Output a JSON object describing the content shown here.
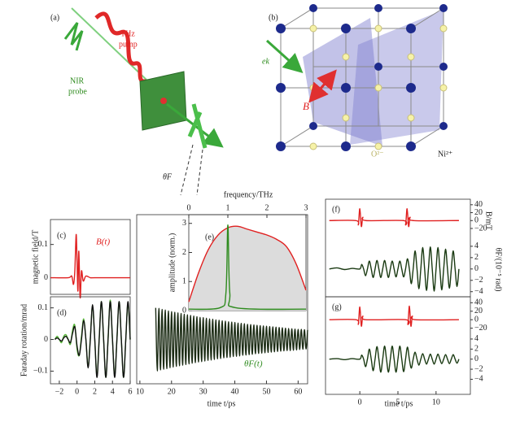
{
  "schematic_a": {
    "label": "(a)",
    "pump_1": "THz",
    "pump_2": "pump",
    "probe_1": "NIR",
    "probe_2": "probe",
    "angle": "θF"
  },
  "schematic_b": {
    "label": "(b)",
    "wavevector": "ek",
    "field": "B",
    "oxygen": "O²⁻",
    "nickel": "Ni²⁺"
  },
  "chart_data": [
    {
      "type": "line",
      "label": "(c)",
      "ylabel": "magnetic field/T",
      "annotation": "B(t)",
      "color": "#e02020",
      "x": [
        -3,
        -1,
        -0.6,
        -0.4,
        -0.25,
        -0.1,
        0,
        0.1,
        0.2,
        0.35,
        0.5,
        0.7,
        1,
        1.5,
        2,
        6
      ],
      "values": [
        0,
        0,
        0.005,
        -0.02,
        0.02,
        0.13,
        0.05,
        -0.04,
        0.08,
        -0.06,
        0.02,
        -0.01,
        0.005,
        0,
        0,
        0
      ],
      "xlim": [
        -3,
        6
      ],
      "ylim": [
        -0.05,
        0.175
      ],
      "yticks": [
        0,
        0.1
      ]
    },
    {
      "type": "line",
      "label": "(d)",
      "ylabel": "Faraday rotation/mrad",
      "x": [
        -2.5,
        -2.25,
        -2,
        -1.75,
        -1.5,
        -1.25,
        -1,
        -0.75,
        -0.5,
        -0.25,
        0,
        0.25,
        0.5,
        0.75,
        1,
        1.25,
        1.5,
        1.75,
        2,
        2.25,
        2.5,
        2.75,
        3,
        3.25,
        3.5,
        3.75,
        4,
        4.25,
        4.5,
        4.75,
        5,
        5.25,
        5.5,
        5.75,
        6
      ],
      "series": [
        {
          "color": "#58b83a",
          "values": [
            0,
            0.01,
            0,
            -0.01,
            0.01,
            0.015,
            0,
            -0.015,
            0.03,
            0.045,
            -0.03,
            -0.05,
            0.01,
            0.065,
            0,
            -0.085,
            0.005,
            0.105,
            0,
            -0.115,
            0.005,
            0.12,
            0,
            -0.12,
            0,
            0.125,
            0,
            -0.115,
            0,
            0.12,
            0,
            -0.12,
            0,
            0.115,
            0
          ]
        },
        {
          "color": "#111111",
          "values": [
            0,
            0.005,
            0,
            -0.005,
            0.005,
            0.01,
            0,
            -0.01,
            0.02,
            0.04,
            -0.02,
            -0.05,
            0,
            0.06,
            0,
            -0.09,
            0,
            0.11,
            0,
            -0.12,
            0,
            0.12,
            0,
            -0.12,
            0,
            0.12,
            0,
            -0.12,
            0,
            0.12,
            0,
            -0.12,
            0,
            0.12,
            0
          ]
        }
      ],
      "xlim": [
        -3,
        6
      ],
      "ylim": [
        -0.14,
        0.135
      ],
      "xticks": [
        {
          "value": -2,
          "label": "−2"
        },
        0,
        2,
        4,
        6
      ],
      "yticks": [
        {
          "value": -0.1,
          "label": "−0.1"
        },
        0,
        0.1
      ]
    },
    {
      "type": "line",
      "xlabel": "time t/ps",
      "annotation": "θF(t)",
      "color": "#1b2b14",
      "x": [
        15,
        15.5,
        16,
        16.5,
        17,
        17.5,
        18,
        18.5,
        19,
        19.5,
        20,
        20.5,
        21,
        21.5,
        22,
        22.5,
        23,
        23.5,
        24,
        24.5,
        25,
        25.5,
        26,
        26.5,
        27,
        27.5,
        28,
        28.5,
        29,
        29.5,
        30,
        30.5,
        31,
        31.5,
        32,
        32.5,
        33,
        33.5,
        34,
        34.5,
        35,
        35.5,
        36,
        36.5,
        37,
        37.5,
        38,
        38.5,
        39,
        39.5,
        40,
        40.5,
        41,
        41.5,
        42,
        42.5,
        43,
        43.5,
        44,
        44.5,
        45,
        45.5,
        46,
        46.5,
        47,
        47.5,
        48,
        48.5,
        49,
        49.5,
        50,
        50.5,
        51,
        51.5,
        52,
        52.5,
        53,
        53.5,
        54,
        54.5,
        55,
        55.5,
        56,
        56.5,
        57,
        57.5,
        58,
        58.5,
        59,
        59.5,
        60,
        60.5,
        61,
        61.5,
        62,
        62.5,
        63
      ],
      "values": [
        0.1,
        -0.099,
        0.098,
        -0.096,
        0.095,
        -0.094,
        0.093,
        -0.092,
        0.09,
        -0.089,
        0.088,
        -0.087,
        0.086,
        -0.085,
        0.084,
        -0.083,
        0.082,
        -0.081,
        0.08,
        -0.079,
        0.078,
        -0.077,
        0.076,
        -0.075,
        0.074,
        -0.073,
        0.072,
        -0.071,
        0.07,
        -0.07,
        0.069,
        -0.068,
        0.067,
        -0.066,
        0.065,
        -0.065,
        0.064,
        -0.063,
        0.062,
        -0.061,
        0.061,
        -0.06,
        0.059,
        -0.058,
        0.058,
        -0.057,
        0.056,
        -0.056,
        0.055,
        -0.054,
        0.054,
        -0.053,
        0.052,
        -0.052,
        0.051,
        -0.05,
        0.05,
        -0.049,
        0.048,
        -0.048,
        0.047,
        -0.047,
        0.046,
        -0.045,
        0.045,
        -0.044,
        0.044,
        -0.043,
        0.043,
        -0.042,
        0.042,
        -0.041,
        0.041,
        -0.04,
        0.04,
        -0.039,
        0.039,
        -0.038,
        0.038,
        -0.037,
        0.037,
        -0.036,
        0.036,
        -0.035,
        0.035,
        -0.035,
        0.034,
        -0.034,
        0.033,
        -0.033,
        0.032,
        -0.032,
        0.032,
        -0.031,
        0.031,
        -0.03,
        0.03
      ],
      "xlim": [
        9,
        63
      ],
      "ylim": [
        -0.14,
        0.135
      ],
      "xticks": [
        10,
        20,
        30,
        40,
        50,
        60
      ]
    },
    {
      "type": "line",
      "label": "(e)",
      "ylabel": "amplitude (norm.)",
      "xlabel": "frequency/THz",
      "series": [
        {
          "color": "#e02020",
          "fill": "#dcdcdc",
          "x": [
            0,
            0.25,
            0.5,
            0.75,
            1,
            1.25,
            1.5,
            1.75,
            2,
            2.25,
            2.5,
            2.75,
            3
          ],
          "values": [
            0.3,
            1.3,
            2.1,
            2.6,
            2.85,
            2.9,
            2.8,
            2.7,
            2.6,
            2.45,
            2.2,
            1.6,
            0.7
          ]
        },
        {
          "color": "#2e8b1e",
          "x": [
            0,
            0.8,
            0.95,
            1,
            1.05,
            1.2,
            3
          ],
          "values": [
            0.05,
            0.1,
            0.6,
            2.95,
            0.6,
            0.1,
            0.05
          ]
        }
      ],
      "xlim": [
        0,
        3
      ],
      "ylim": [
        0,
        3.3
      ],
      "xticks": [
        0,
        1,
        2,
        3
      ],
      "yticks": [
        0,
        1,
        2,
        3
      ]
    },
    {
      "type": "line",
      "label": "(f)",
      "ylabel": "B/mT",
      "color": "#e02020",
      "x": [
        -4,
        -0.5,
        -0.2,
        0,
        0.2,
        0.4,
        0.8,
        5.7,
        6,
        6.2,
        6.4,
        6.6,
        7,
        13
      ],
      "values": [
        0,
        0,
        -10,
        30,
        -15,
        8,
        0,
        0,
        -10,
        30,
        -15,
        8,
        0,
        0
      ],
      "xlim": [
        -4.5,
        14.5
      ],
      "ylim": [
        -55,
        54
      ],
      "yticks": [
        40,
        20,
        0,
        {
          "value": -20,
          "label": "−20"
        }
      ]
    },
    {
      "type": "line",
      "ylabel": "θF/(10⁻⁵ rad)",
      "color": "#1a3a12",
      "x": [
        -4,
        -3,
        -2,
        -1,
        0,
        0.25,
        0.5,
        0.75,
        1,
        1.25,
        1.5,
        1.75,
        2,
        2.25,
        2.5,
        2.75,
        3,
        3.25,
        3.5,
        3.75,
        4,
        4.25,
        4.5,
        4.75,
        5,
        5.25,
        5.5,
        5.75,
        6,
        6.25,
        6.5,
        6.75,
        7,
        7.25,
        7.5,
        7.75,
        8,
        8.25,
        8.5,
        8.75,
        9,
        9.25,
        9.5,
        9.75,
        10,
        10.25,
        10.5,
        10.75,
        11,
        11.25,
        11.5,
        11.75,
        12,
        12.25,
        12.5,
        12.75,
        13
      ],
      "values": [
        0,
        0.2,
        -0.1,
        0.1,
        0,
        0.8,
        0,
        -1.2,
        0,
        1.4,
        0,
        -1.5,
        0,
        1.5,
        0,
        -1.5,
        0,
        1.5,
        0,
        -1.5,
        0,
        1.4,
        0,
        -1.4,
        0,
        1.4,
        0,
        -1.4,
        0,
        1.8,
        0,
        -2.6,
        0,
        3.2,
        0,
        -3.5,
        0,
        3.8,
        0,
        -3.8,
        0,
        3.9,
        0,
        -3.9,
        0,
        3.8,
        0,
        -3.7,
        0,
        3.5,
        0,
        -3.4,
        0,
        3.2,
        0,
        -3.1,
        0
      ],
      "xlim": [
        -4.5,
        14.5
      ],
      "ylim": [
        -4.9,
        4.7
      ],
      "yticks": [
        4,
        2,
        0,
        {
          "value": -2,
          "label": "−2"
        },
        {
          "value": -4,
          "label": "−4"
        }
      ]
    },
    {
      "type": "line",
      "label": "(g)",
      "color": "#e02020",
      "x": [
        -4,
        -0.5,
        -0.2,
        0,
        0.2,
        0.4,
        0.8,
        6,
        6.3,
        6.5,
        6.7,
        6.9,
        7.3,
        13
      ],
      "values": [
        0,
        0,
        -10,
        30,
        -15,
        8,
        0,
        0,
        -10,
        32,
        -15,
        8,
        0,
        0
      ],
      "xlim": [
        -4.5,
        14.5
      ],
      "ylim": [
        -36,
        54
      ],
      "yticks": [
        40,
        20,
        0,
        {
          "value": -20,
          "label": "−20"
        }
      ]
    },
    {
      "type": "line",
      "xlabel": "time t/ps",
      "color": "#1a3a12",
      "x": [
        -4,
        -3,
        -2,
        -1,
        0,
        0.25,
        0.5,
        0.75,
        1,
        1.25,
        1.5,
        1.75,
        2,
        2.25,
        2.5,
        2.75,
        3,
        3.25,
        3.5,
        3.75,
        4,
        4.25,
        4.5,
        4.75,
        5,
        5.25,
        5.5,
        5.75,
        6,
        6.25,
        6.5,
        6.75,
        7,
        7.25,
        7.5,
        7.75,
        8,
        8.25,
        8.5,
        8.75,
        9,
        9.25,
        9.5,
        9.75,
        10,
        10.25,
        10.5,
        10.75,
        11,
        11.25,
        11.5,
        11.75,
        12,
        12.25,
        12.5,
        12.75,
        13
      ],
      "values": [
        0,
        0.1,
        -0.1,
        0.1,
        0,
        0.8,
        0,
        -1.5,
        0,
        2,
        0,
        -2.3,
        0,
        2.5,
        0,
        -2.6,
        0,
        2.6,
        0,
        -2.6,
        0,
        2.6,
        0,
        -2.6,
        0,
        2.6,
        0,
        -2.5,
        0,
        2.4,
        0,
        -1.8,
        0,
        1.4,
        0,
        -1.2,
        0,
        1.1,
        0,
        -1,
        0,
        1,
        0,
        -1,
        0,
        1,
        0,
        -0.9,
        0,
        0.9,
        0,
        -0.9,
        0,
        0.9,
        0,
        -0.8,
        0
      ],
      "xlim": [
        -4.5,
        14.5
      ],
      "ylim": [
        -7,
        4.8
      ],
      "xticks": [
        0,
        5,
        10
      ],
      "yticks": [
        4,
        2,
        0,
        {
          "value": -2,
          "label": "−2"
        },
        {
          "value": -4,
          "label": "−4"
        }
      ]
    }
  ]
}
